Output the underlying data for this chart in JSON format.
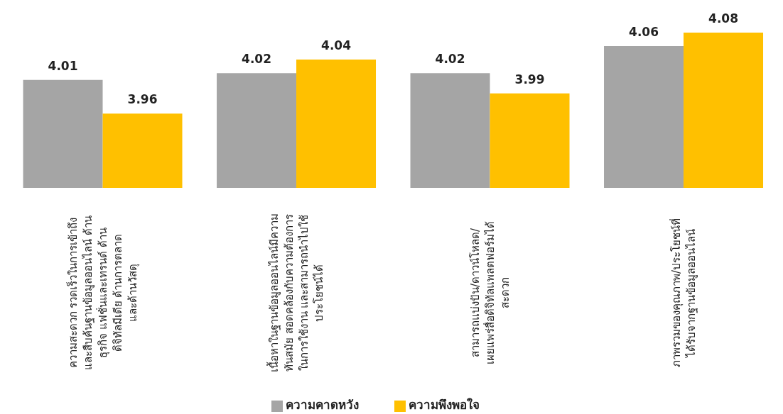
{
  "chart_data": {
    "type": "bar",
    "categories": [
      "ความสะดวก รวดเร็วในการเข้าถึง\nและสืบค้นฐานข้อมูลออนไลน์ ด้าน\nธุรกิจ แฟชั่นและเทรนด์ ด้าน\nดิจิทัลมีเดีย ด้านการตลาด\nและด้านวัสดุ",
      "เนื้อหาในฐานข้อมูลออนไลน์มีความ\nทันสมัย สอดคล้องกับความต้องการ\nในการใช้งาน และสามารถนำไปใช้\nประโยชน์ได้",
      "สามารถแบ่งปัน/ดาวน์โหลด/\nเผยแพร่สื่อดิจิทัลแพลตฟอร์มได้\nสะดวก",
      "ภาพรวมของคุณภาพ/ประโยชน์ที่\nได้รับจากฐานข้อมูลออนไลน์"
    ],
    "series": [
      {
        "name": "ความคาดหวัง",
        "color": "#a5a5a5",
        "values": [
          4.01,
          4.02,
          4.02,
          4.06
        ]
      },
      {
        "name": "ความพึงพอใจ",
        "color": "#ffc000",
        "values": [
          3.96,
          4.04,
          3.99,
          4.08
        ]
      }
    ],
    "ylim": [
      3.85,
      4.08
    ],
    "data_labels": true,
    "legend": "bottom"
  }
}
